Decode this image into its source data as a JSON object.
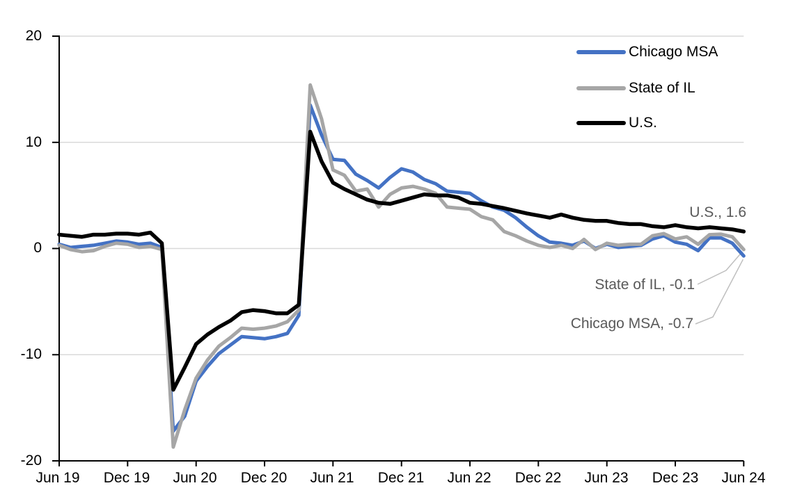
{
  "chart_data": {
    "type": "line",
    "grid": true,
    "legend_position": "top-right",
    "ylim": [
      -20,
      20
    ],
    "y_ticks": [
      "20",
      "10",
      "0",
      "-10",
      "-20"
    ],
    "y_gridline_values": [
      20,
      10,
      0,
      -10
    ],
    "x_tick_labels": [
      "Jun 19",
      "Dec 19",
      "Jun 20",
      "Dec 20",
      "Jun 21",
      "Dec 21",
      "Jun 22",
      "Dec 22",
      "Jun 23",
      "Dec 23",
      "Jun 24"
    ],
    "months": [
      "Jun 2019",
      "Jul 2019",
      "Aug 2019",
      "Sep 2019",
      "Oct 2019",
      "Nov 2019",
      "Dec 2019",
      "Jan 2020",
      "Feb 2020",
      "Mar 2020",
      "Apr 2020",
      "May 2020",
      "Jun 2020",
      "Jul 2020",
      "Aug 2020",
      "Sep 2020",
      "Oct 2020",
      "Nov 2020",
      "Dec 2020",
      "Jan 2021",
      "Feb 2021",
      "Mar 2021",
      "Apr 2021",
      "May 2021",
      "Jun 2021",
      "Jul 2021",
      "Aug 2021",
      "Sep 2021",
      "Oct 2021",
      "Nov 2021",
      "Dec 2021",
      "Jan 2022",
      "Feb 2022",
      "Mar 2022",
      "Apr 2022",
      "May 2022",
      "Jun 2022",
      "Jul 2022",
      "Aug 2022",
      "Sep 2022",
      "Oct 2022",
      "Nov 2022",
      "Dec 2022",
      "Jan 2023",
      "Feb 2023",
      "Mar 2023",
      "Apr 2023",
      "May 2023",
      "Jun 2023",
      "Jul 2023",
      "Aug 2023",
      "Sep 2023",
      "Oct 2023",
      "Nov 2023",
      "Dec 2023",
      "Jan 2024",
      "Feb 2024",
      "Mar 2024",
      "Apr 2024",
      "May 2024",
      "Jun 2024"
    ],
    "series": [
      {
        "name": "Chicago MSA",
        "color": "#4472C4",
        "end_value": -0.7,
        "values": [
          0.4,
          0.1,
          0.2,
          0.3,
          0.5,
          0.7,
          0.6,
          0.4,
          0.5,
          0.1,
          -17.2,
          -15.8,
          -12.5,
          -11.1,
          -9.9,
          -9.1,
          -8.3,
          -8.4,
          -8.5,
          -8.3,
          -8.0,
          -6.3,
          13.5,
          10.7,
          8.4,
          8.3,
          7.0,
          6.4,
          5.7,
          6.7,
          7.5,
          7.2,
          6.5,
          6.1,
          5.4,
          5.3,
          5.2,
          4.5,
          3.9,
          3.6,
          2.9,
          2.0,
          1.2,
          0.6,
          0.5,
          0.3,
          0.7,
          0.0,
          0.4,
          0.1,
          0.2,
          0.3,
          0.9,
          1.2,
          0.6,
          0.4,
          -0.2,
          1.0,
          1.0,
          0.5,
          -0.7
        ]
      },
      {
        "name": "State of IL",
        "color": "#A6A6A6",
        "end_value": -0.1,
        "values": [
          0.3,
          -0.1,
          -0.3,
          -0.2,
          0.2,
          0.5,
          0.4,
          0.1,
          0.2,
          -0.1,
          -18.7,
          -15.2,
          -12.2,
          -10.5,
          -9.2,
          -8.4,
          -7.5,
          -7.6,
          -7.5,
          -7.3,
          -6.9,
          -5.8,
          15.4,
          12.2,
          7.4,
          6.9,
          5.4,
          5.6,
          3.9,
          5.1,
          5.7,
          5.85,
          5.6,
          5.2,
          3.9,
          3.8,
          3.7,
          3.0,
          2.7,
          1.6,
          1.2,
          0.7,
          0.3,
          0.1,
          0.3,
          0.0,
          0.85,
          -0.1,
          0.5,
          0.3,
          0.4,
          0.4,
          1.2,
          1.4,
          0.9,
          1.1,
          0.4,
          1.3,
          1.35,
          1.1,
          -0.1
        ]
      },
      {
        "name": "U.S.",
        "color": "#000000",
        "end_value": 1.6,
        "values": [
          1.3,
          1.2,
          1.1,
          1.3,
          1.3,
          1.4,
          1.4,
          1.3,
          1.5,
          0.5,
          -13.3,
          -11.2,
          -9.0,
          -8.1,
          -7.4,
          -6.8,
          -6.0,
          -5.8,
          -5.9,
          -6.1,
          -6.1,
          -5.3,
          11.0,
          8.2,
          6.2,
          5.6,
          5.1,
          4.6,
          4.3,
          4.2,
          4.5,
          4.8,
          5.1,
          5.0,
          5.0,
          4.8,
          4.3,
          4.2,
          4.0,
          3.8,
          3.55,
          3.3,
          3.1,
          2.9,
          3.2,
          2.9,
          2.7,
          2.6,
          2.6,
          2.4,
          2.3,
          2.3,
          2.1,
          2.0,
          2.2,
          2.0,
          1.9,
          2.0,
          1.9,
          1.8,
          1.6
        ]
      }
    ],
    "annotations": [
      {
        "text": "U.S., 1.6",
        "series": "U.S."
      },
      {
        "text": "State of IL, -0.1",
        "series": "State of IL"
      },
      {
        "text": "Chicago MSA, -0.7",
        "series": "Chicago MSA"
      }
    ]
  },
  "colors": {
    "gridline": "#D9D9D9",
    "axis": "#000000",
    "annotation_text": "#595959",
    "leader_line": "#BFBFBF",
    "background": "#FFFFFF"
  }
}
